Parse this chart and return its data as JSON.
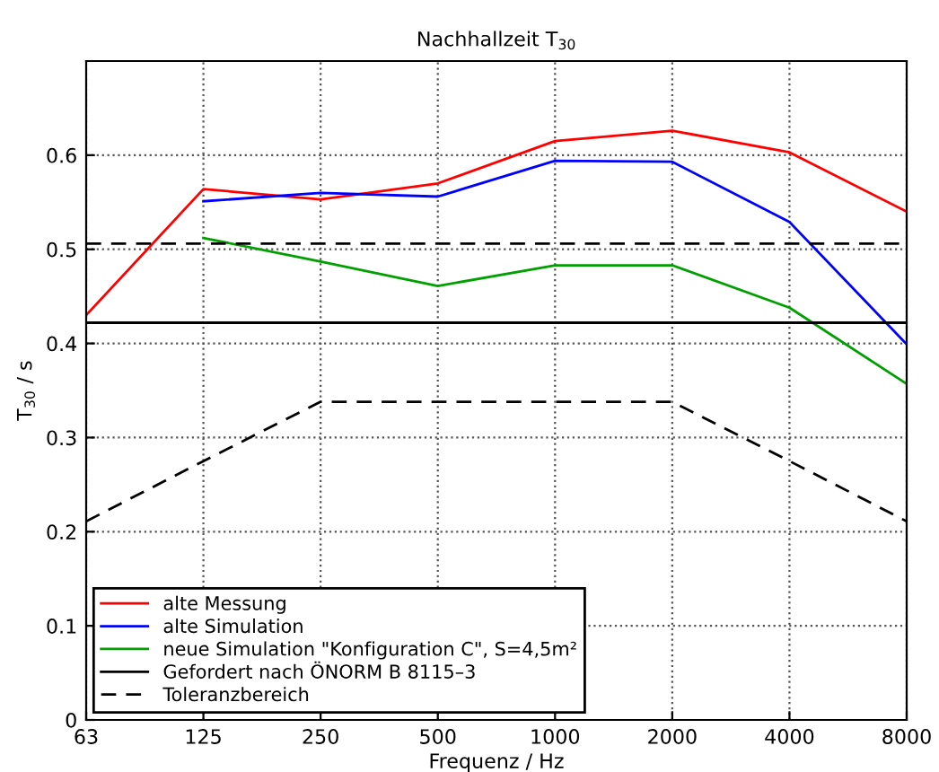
{
  "chart_data": {
    "type": "line",
    "title": "Nachhallzeit T$_{30}$",
    "xlabel": "Frequenz / Hz",
    "ylabel": "T$_{30}$ / s",
    "categories": [
      "63",
      "125",
      "250",
      "500",
      "1000",
      "2000",
      "4000",
      "8000"
    ],
    "series": [
      {
        "name": "alte Messung",
        "color": "#ff0000",
        "values": [
          0.43,
          0.564,
          0.553,
          0.57,
          0.615,
          0.626,
          0.603,
          0.54
        ]
      },
      {
        "name": "alte Simulation",
        "color": "#0000ff",
        "values": [
          null,
          0.551,
          0.56,
          0.556,
          0.594,
          0.593,
          0.529,
          0.399
        ]
      },
      {
        "name": "neue Simulation \"Konfiguration C\", S=4,5m²",
        "color": "#00a000",
        "values": [
          null,
          0.512,
          0.487,
          0.461,
          0.483,
          0.483,
          0.438,
          0.357
        ]
      },
      {
        "name": "Gefordert nach ÖNORM B 8115–3",
        "color": "#000000",
        "values": [
          0.422,
          0.422,
          0.422,
          0.422,
          0.422,
          0.422,
          0.422,
          0.422
        ]
      },
      {
        "name": "Toleranzbereich",
        "color": "#000000",
        "line_style": "dashed",
        "values": [
          0.211,
          0.275,
          0.338,
          0.338,
          0.338,
          0.338,
          0.275,
          0.211
        ]
      },
      {
        "color": "#000000",
        "line_style": "dashed",
        "values": [
          0.506,
          0.506,
          0.506,
          0.506,
          0.506,
          0.506,
          0.506,
          0.506
        ]
      }
    ],
    "ylim": [
      0,
      0.7
    ],
    "yticks": [
      0,
      0.1,
      0.2,
      0.3,
      0.4,
      0.5,
      0.6
    ],
    "grid": true,
    "legend": "bottom left",
    "marker": "none",
    "line_style": "solid"
  }
}
